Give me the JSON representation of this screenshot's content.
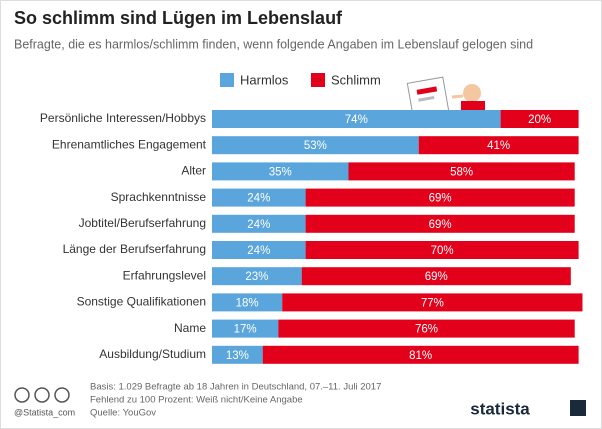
{
  "chart_data": {
    "type": "stacked-bar",
    "title": "So schlimm sind Lügen im Lebenslauf",
    "subtitle": "Befragte, die es harmlos/schlimm finden, wenn folgende Angaben im Lebenslauf gelogen sind",
    "categories": [
      "Persönliche Interessen/Hobbys",
      "Ehrenamtliches Engagement",
      "Alter",
      "Sprachkenntnisse",
      "Jobtitel/Berufserfahrung",
      "Länge der Berufserfahrung",
      "Erfahrungslevel",
      "Sonstige Qualifikationen",
      "Name",
      "Ausbildung/Studium"
    ],
    "series": [
      {
        "name": "Harmlos",
        "color": "#5aa5dc",
        "values": [
          74,
          53,
          35,
          24,
          24,
          24,
          23,
          18,
          17,
          13
        ],
        "value_labels": [
          "74%",
          "53%",
          "35%",
          "24%",
          "24%",
          "24%",
          "23%",
          "18%",
          "17%",
          "13%"
        ]
      },
      {
        "name": "Schlimm",
        "color": "#e2001a",
        "values": [
          20,
          41,
          58,
          69,
          69,
          70,
          69,
          77,
          76,
          81
        ],
        "value_labels": [
          "20%",
          "41%",
          "58%",
          "69%",
          "69%",
          "70%",
          "69%",
          "77%",
          "76%",
          "81%"
        ]
      }
    ],
    "footer": {
      "handle": "@Statista_com",
      "basis": "Basis: 1.029 Befragte ab 18 Jahren in Deutschland, 07.–11. Juli 2017",
      "note": "Fehlend zu 100 Prozent: Weiß nicht/Keine Angabe",
      "source": "Quelle: YouGov",
      "logo": "statista"
    }
  }
}
